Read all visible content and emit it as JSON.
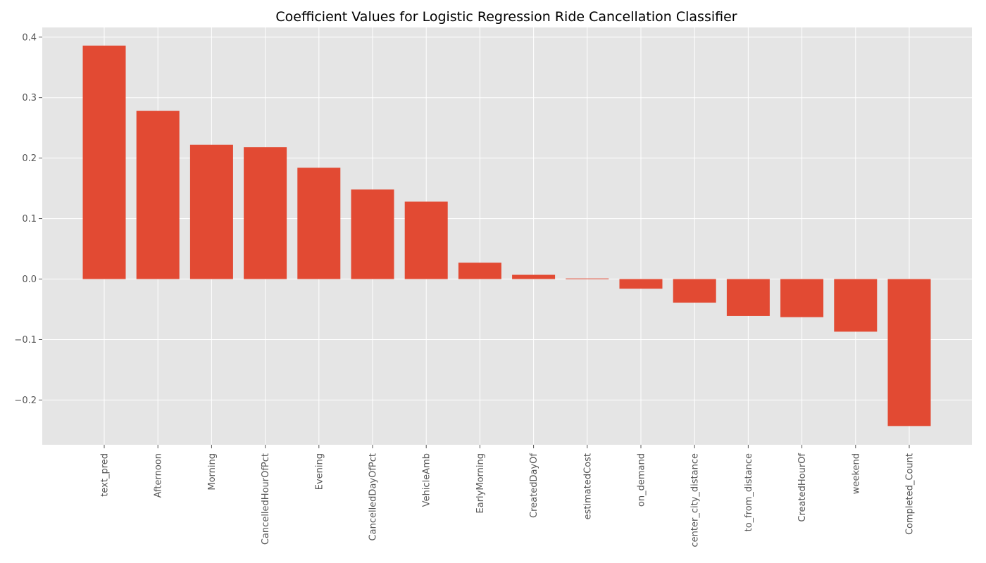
{
  "chart_data": {
    "type": "bar",
    "title": "Coefficient Values for Logistic Regression Ride Cancellation Classifier",
    "xlabel": "",
    "ylabel": "",
    "categories": [
      "text_pred",
      "Afternoon",
      "Morning",
      "CancelledHourOfPct",
      "Evening",
      "CancelledDayOfPct",
      "VehicleAmb",
      "EarlyMorning",
      "CreatedDayOf",
      "estimatedCost",
      "on_demand",
      "center_city_distance",
      "to_from_distance",
      "CreatedHourOf",
      "weekend",
      "Completed_Count"
    ],
    "values": [
      0.386,
      0.278,
      0.222,
      0.218,
      0.184,
      0.148,
      0.128,
      0.027,
      0.007,
      0.001,
      -0.016,
      -0.039,
      -0.061,
      -0.063,
      -0.087,
      -0.243
    ],
    "ylim": [
      -0.274,
      0.416
    ],
    "yticks": [
      -0.2,
      -0.1,
      0.0,
      0.1,
      0.2,
      0.3,
      0.4
    ],
    "ytick_labels": [
      "−0.2",
      "−0.1",
      "0.0",
      "0.1",
      "0.2",
      "0.3",
      "0.4"
    ],
    "grid": true,
    "legend": "none",
    "colors": {
      "bar": "#E24A33",
      "plot_background": "#E5E5E5",
      "grid": "#FFFFFF",
      "tick_label": "#555555"
    }
  }
}
